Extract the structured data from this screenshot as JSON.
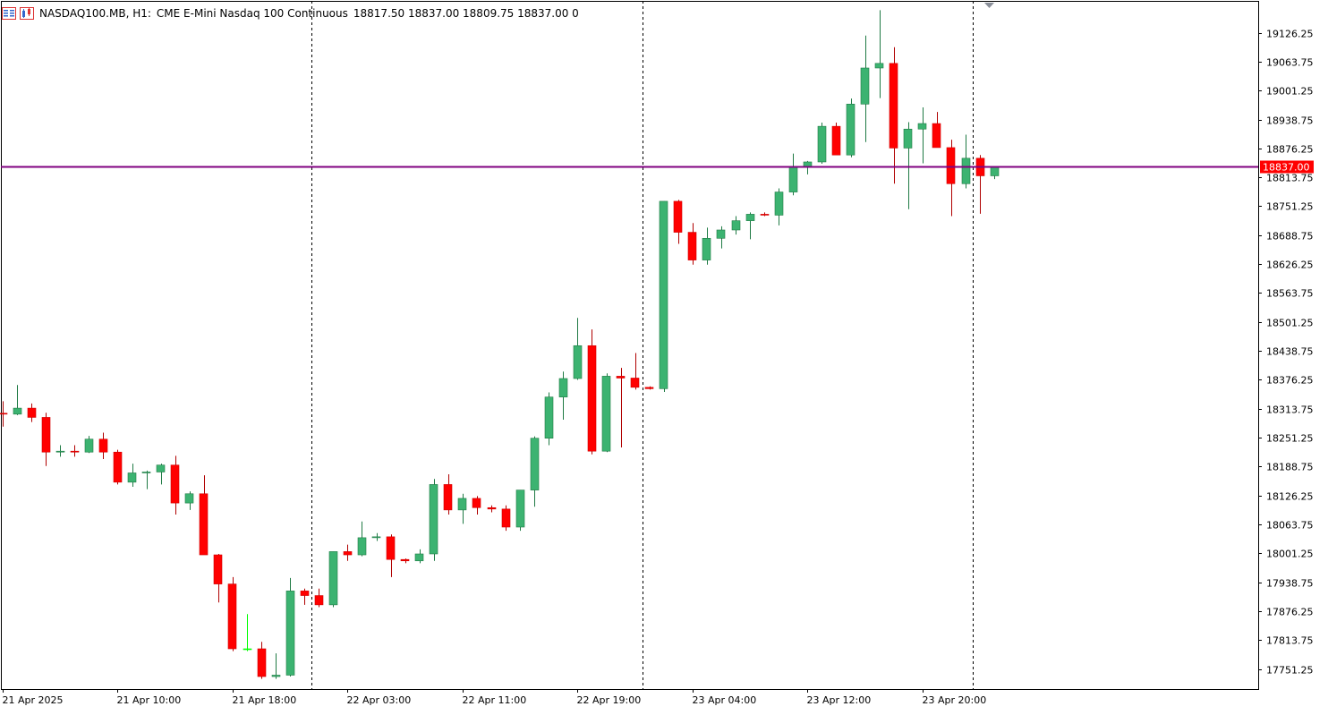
{
  "header": {
    "symbol": "NASDAQ100.MB, H1:",
    "description": "CME E-Mini Nasdaq 100 Continuous",
    "ohlc": "18817.50 18837.00 18809.75 18837.00  0"
  },
  "colors": {
    "bull": "#3cb371",
    "bear": "#ff0000",
    "doji": "#00ff00",
    "price_line": "#800080",
    "price_label_bg": "#ff0000",
    "grid_separator": "#000000",
    "axis": "#000000"
  },
  "icons": [
    "chart-window-icon",
    "chart-properties-icon"
  ],
  "chart_data": {
    "type": "candlestick",
    "current_price": 18837.0,
    "current_price_label": "18837.00",
    "ylim": [
      17708,
      19195
    ],
    "y_ticks": [
      "19126.25",
      "19063.75",
      "19001.25",
      "18938.75",
      "18876.25",
      "18813.75",
      "18751.25",
      "18688.75",
      "18626.25",
      "18563.75",
      "18501.25",
      "18438.75",
      "18376.25",
      "18313.75",
      "18251.25",
      "18188.75",
      "18126.25",
      "18063.75",
      "18001.25",
      "17938.75",
      "17876.25",
      "17813.75",
      "17751.25"
    ],
    "x_labels": [
      {
        "index": 0,
        "label": "21 Apr 2025"
      },
      {
        "index": 8,
        "label": "21 Apr 10:00"
      },
      {
        "index": 16,
        "label": "21 Apr 18:00"
      },
      {
        "index": 24,
        "label": "22 Apr 03:00"
      },
      {
        "index": 32,
        "label": "22 Apr 11:00"
      },
      {
        "index": 40,
        "label": "22 Apr 19:00"
      },
      {
        "index": 48,
        "label": "23 Apr 04:00"
      },
      {
        "index": 56,
        "label": "23 Apr 12:00"
      },
      {
        "index": 64,
        "label": "23 Apr 20:00"
      }
    ],
    "day_separators": [
      21.5,
      44.5,
      67.5
    ],
    "candles": [
      [
        18304,
        18330,
        18275,
        18302
      ],
      [
        18302,
        18365,
        18300,
        18315
      ],
      [
        18315,
        18325,
        18285,
        18295
      ],
      [
        18295,
        18305,
        18190,
        18220
      ],
      [
        18220,
        18235,
        18210,
        18222
      ],
      [
        18222,
        18235,
        18210,
        18220
      ],
      [
        18220,
        18255,
        18218,
        18248
      ],
      [
        18248,
        18262,
        18205,
        18220
      ],
      [
        18220,
        18225,
        18150,
        18155
      ],
      [
        18155,
        18195,
        18145,
        18175
      ],
      [
        18175,
        18180,
        18140,
        18177
      ],
      [
        18177,
        18195,
        18150,
        18192
      ],
      [
        18192,
        18212,
        18085,
        18110
      ],
      [
        18110,
        18135,
        18095,
        18130
      ],
      [
        18130,
        18170,
        17998,
        17998
      ],
      [
        17998,
        18000,
        17895,
        17935
      ],
      [
        17935,
        17950,
        17790,
        17795
      ],
      [
        17795,
        17870,
        17790,
        17795
      ],
      [
        17795,
        17810,
        17730,
        17735
      ],
      [
        17735,
        17785,
        17730,
        17738
      ],
      [
        17738,
        17948,
        17735,
        17920
      ],
      [
        17920,
        17925,
        17890,
        17910
      ],
      [
        17910,
        17925,
        17885,
        17890
      ],
      [
        17890,
        18005,
        17885,
        18005
      ],
      [
        18005,
        18020,
        17985,
        17998
      ],
      [
        17998,
        18070,
        17995,
        18035
      ],
      [
        18035,
        18045,
        18028,
        18037
      ],
      [
        18037,
        18042,
        17950,
        17988
      ],
      [
        17988,
        17990,
        17980,
        17985
      ],
      [
        17985,
        18010,
        17980,
        18000
      ],
      [
        18000,
        18162,
        17985,
        18150
      ],
      [
        18150,
        18172,
        18085,
        18095
      ],
      [
        18095,
        18130,
        18065,
        18120
      ],
      [
        18120,
        18125,
        18085,
        18100
      ],
      [
        18100,
        18105,
        18090,
        18097
      ],
      [
        18097,
        18105,
        18050,
        18058
      ],
      [
        18058,
        18138,
        18050,
        18138
      ],
      [
        18138,
        18254,
        18102,
        18250
      ],
      [
        18250,
        18349,
        18235,
        18339
      ],
      [
        18339,
        18394,
        18290,
        18379
      ],
      [
        18379,
        18510,
        18376,
        18450
      ],
      [
        18450,
        18485,
        18215,
        18222
      ],
      [
        18222,
        18390,
        18220,
        18384
      ],
      [
        18384,
        18402,
        18230,
        18380
      ],
      [
        18380,
        18434,
        18355,
        18360
      ],
      [
        18360,
        18362,
        18355,
        18357
      ],
      [
        18357,
        18762,
        18350,
        18762
      ],
      [
        18762,
        18765,
        18670,
        18695
      ],
      [
        18695,
        18715,
        18625,
        18635
      ],
      [
        18635,
        18705,
        18625,
        18682
      ],
      [
        18682,
        18708,
        18660,
        18700
      ],
      [
        18700,
        18730,
        18690,
        18720
      ],
      [
        18720,
        18738,
        18680,
        18734
      ],
      [
        18734,
        18738,
        18730,
        18732
      ],
      [
        18732,
        18790,
        18710,
        18782
      ],
      [
        18782,
        18865,
        18775,
        18835
      ],
      [
        18835,
        18849,
        18820,
        18847
      ],
      [
        18847,
        18932,
        18843,
        18924
      ],
      [
        18924,
        18932,
        18862,
        18862
      ],
      [
        18862,
        18984,
        18857,
        18972
      ],
      [
        18972,
        19120,
        18890,
        19050
      ],
      [
        19050,
        19175,
        18985,
        19060
      ],
      [
        19060,
        19095,
        18800,
        18877
      ],
      [
        18877,
        18933,
        18745,
        18918
      ],
      [
        18918,
        18965,
        18844,
        18930
      ],
      [
        18930,
        18955,
        18880,
        18878
      ],
      [
        18878,
        18895,
        18730,
        18800
      ],
      [
        18800,
        18906,
        18790,
        18855
      ],
      [
        18855,
        18862,
        18735,
        18817
      ],
      [
        18817,
        18837,
        18810,
        18837
      ]
    ]
  }
}
